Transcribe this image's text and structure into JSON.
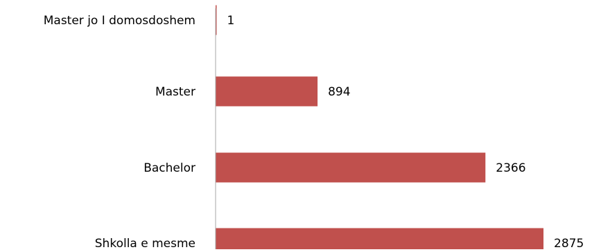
{
  "chart_data": {
    "type": "bar",
    "orientation": "horizontal",
    "categories": [
      "Master jo I domosdoshem",
      "Master",
      "Bachelor",
      "Shkolla e mesme"
    ],
    "values": [
      1,
      894,
      2366,
      2875
    ],
    "data_labels": [
      "1",
      "894",
      "2366",
      "2875"
    ],
    "title": "",
    "xlabel": "",
    "ylabel": "",
    "xlim": [
      0,
      3000
    ],
    "grid": false,
    "legend": "none",
    "bar_color": "#c0504d",
    "axis_color": "#a6a6a6",
    "text_color": "#000000"
  }
}
